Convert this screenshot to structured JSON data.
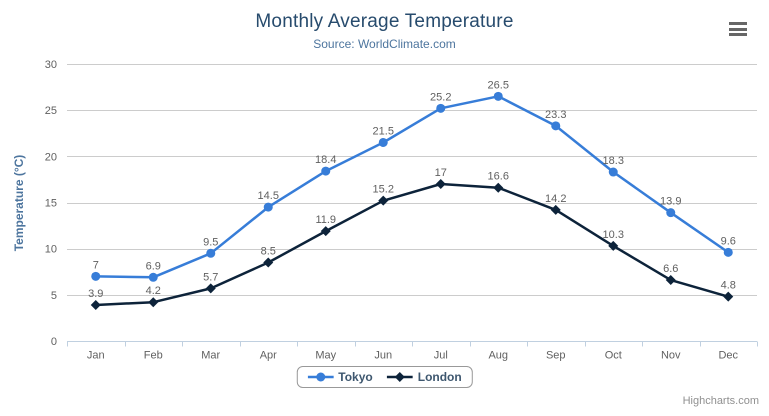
{
  "header": {
    "title": "Monthly Average Temperature",
    "subtitle": "Source: WorldClimate.com"
  },
  "credits": {
    "label": "Highcharts.com"
  },
  "menu": {
    "icon": "hamburger-menu-icon"
  },
  "chart_data": {
    "type": "line",
    "title": "Monthly Average Temperature",
    "subtitle": "Source: WorldClimate.com",
    "xlabel": "",
    "ylabel": "Temperature (°C)",
    "ylim": [
      0,
      30
    ],
    "ytick_interval": 5,
    "grid": true,
    "legend_position": "bottom-center",
    "categories": [
      "Jan",
      "Feb",
      "Mar",
      "Apr",
      "May",
      "Jun",
      "Jul",
      "Aug",
      "Sep",
      "Oct",
      "Nov",
      "Dec"
    ],
    "series": [
      {
        "name": "Tokyo",
        "marker": "circle",
        "color": "#377dd8",
        "values": [
          7,
          6.9,
          9.5,
          14.5,
          18.4,
          21.5,
          25.2,
          26.5,
          23.3,
          18.3,
          13.9,
          9.6
        ]
      },
      {
        "name": "London",
        "marker": "diamond",
        "color": "#0d233a",
        "values": [
          3.9,
          4.2,
          5.7,
          8.5,
          11.9,
          15.2,
          17,
          16.6,
          14.2,
          10.3,
          6.6,
          4.8
        ]
      }
    ],
    "colors": {
      "grid_line": "#cccccc",
      "axis_line": "#c0d0e0",
      "tick": "#c0d0e0",
      "axis_label": "#606060",
      "data_label": "#606060",
      "axis_title": "#4d759e",
      "title": "#274b6d",
      "subtitle": "#4d759e",
      "legend_text": "#3e576f",
      "legend_border": "#999999",
      "menu_icon": "#666666",
      "credits": "#909090"
    }
  }
}
